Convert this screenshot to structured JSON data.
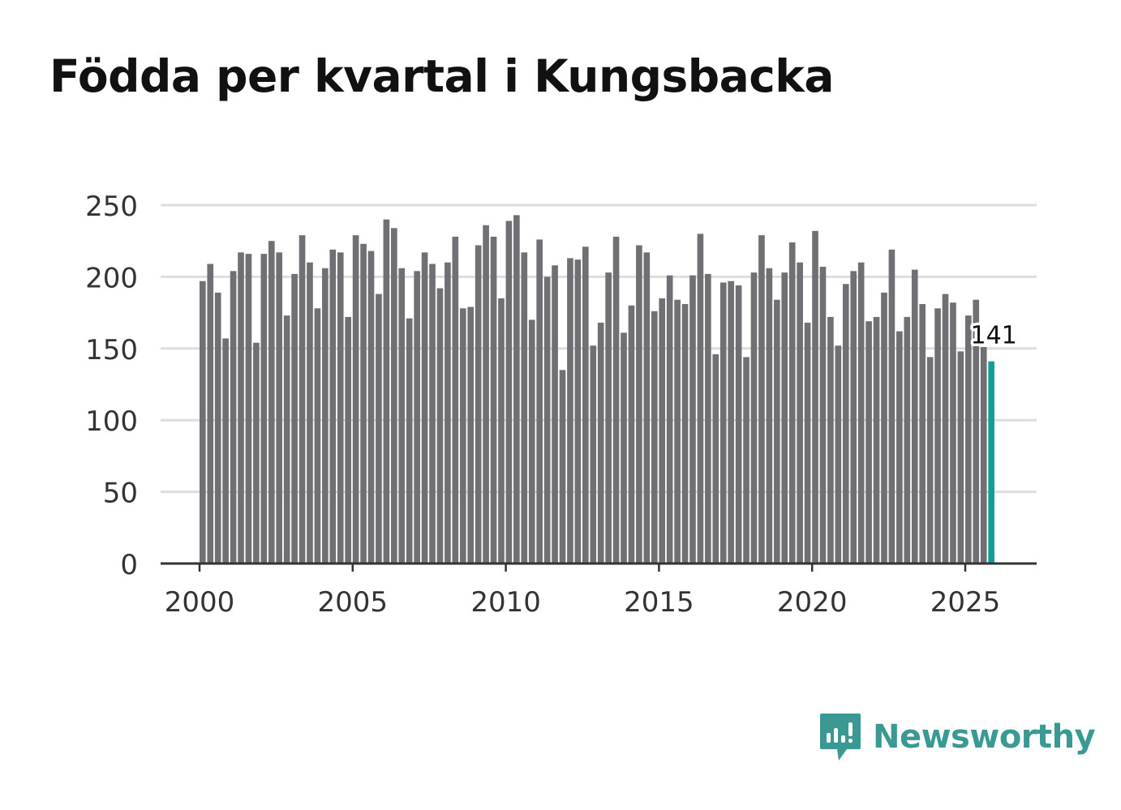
{
  "title": "Födda per kvartal i Kungsbacka",
  "brand": {
    "name": "Newsworthy",
    "icon": "newsworthy-logo-icon",
    "color": "#3a9a93"
  },
  "colors": {
    "bar": "#6f6f74",
    "highlight": "#119e98",
    "grid": "#dddddd",
    "axis": "#333333"
  },
  "chart_data": {
    "type": "bar",
    "title": "Födda per kvartal i Kungsbacka",
    "xlabel": "",
    "ylabel": "",
    "start_year": 2000,
    "periods_per_year": 4,
    "x_ticks": [
      "2000",
      "2005",
      "2010",
      "2015",
      "2020",
      "2025"
    ],
    "y_ticks": [
      "0",
      "50",
      "100",
      "150",
      "200",
      "250"
    ],
    "ylim": [
      0,
      250
    ],
    "grid": true,
    "values": [
      197,
      209,
      189,
      157,
      204,
      217,
      216,
      154,
      216,
      225,
      217,
      173,
      202,
      229,
      210,
      178,
      206,
      219,
      217,
      172,
      229,
      223,
      218,
      188,
      240,
      234,
      206,
      171,
      204,
      217,
      209,
      192,
      210,
      228,
      178,
      179,
      222,
      236,
      228,
      185,
      239,
      243,
      217,
      170,
      226,
      200,
      208,
      135,
      213,
      212,
      221,
      152,
      168,
      203,
      228,
      161,
      180,
      222,
      217,
      176,
      185,
      201,
      184,
      181,
      201,
      230,
      202,
      146,
      196,
      197,
      194,
      144,
      203,
      229,
      206,
      184,
      203,
      224,
      210,
      168,
      232,
      207,
      172,
      152,
      195,
      204,
      210,
      169,
      172,
      189,
      219,
      162,
      172,
      205,
      181,
      144,
      178,
      188,
      182,
      148,
      173,
      184,
      151,
      141
    ],
    "highlight_label": "141"
  }
}
